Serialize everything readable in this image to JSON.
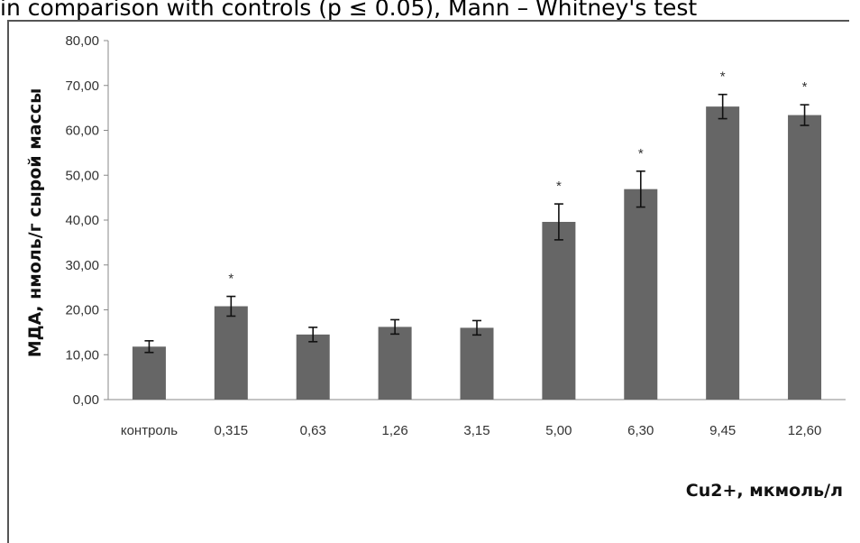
{
  "caption": "in comparison with controls (p ≤ 0.05), Mann – Whitney's test",
  "chart_data": {
    "type": "bar",
    "categories": [
      "контроль",
      "0,315",
      "0,63",
      "1,26",
      "3,15",
      "5,00",
      "6,30",
      "9,45",
      "12,60"
    ],
    "values": [
      11.8,
      20.8,
      14.5,
      16.2,
      16.0,
      39.6,
      46.9,
      65.3,
      63.4
    ],
    "errors": [
      1.3,
      2.2,
      1.6,
      1.6,
      1.6,
      4.0,
      4.0,
      2.7,
      2.3
    ],
    "significant": [
      false,
      true,
      false,
      false,
      false,
      true,
      true,
      true,
      true
    ],
    "significance_marker": "*",
    "xlabel": "Cu2+, мкмоль/л",
    "ylabel": "МДА, нмоль/г сырой массы",
    "ylim": [
      0,
      80
    ],
    "yticks": [
      0,
      10,
      20,
      30,
      40,
      50,
      60,
      70,
      80
    ],
    "ytick_labels": [
      "0,00",
      "10,00",
      "20,00",
      "30,00",
      "40,00",
      "50,00",
      "60,00",
      "70,00",
      "80,00"
    ],
    "bar_color": "#666666",
    "grid": false
  }
}
